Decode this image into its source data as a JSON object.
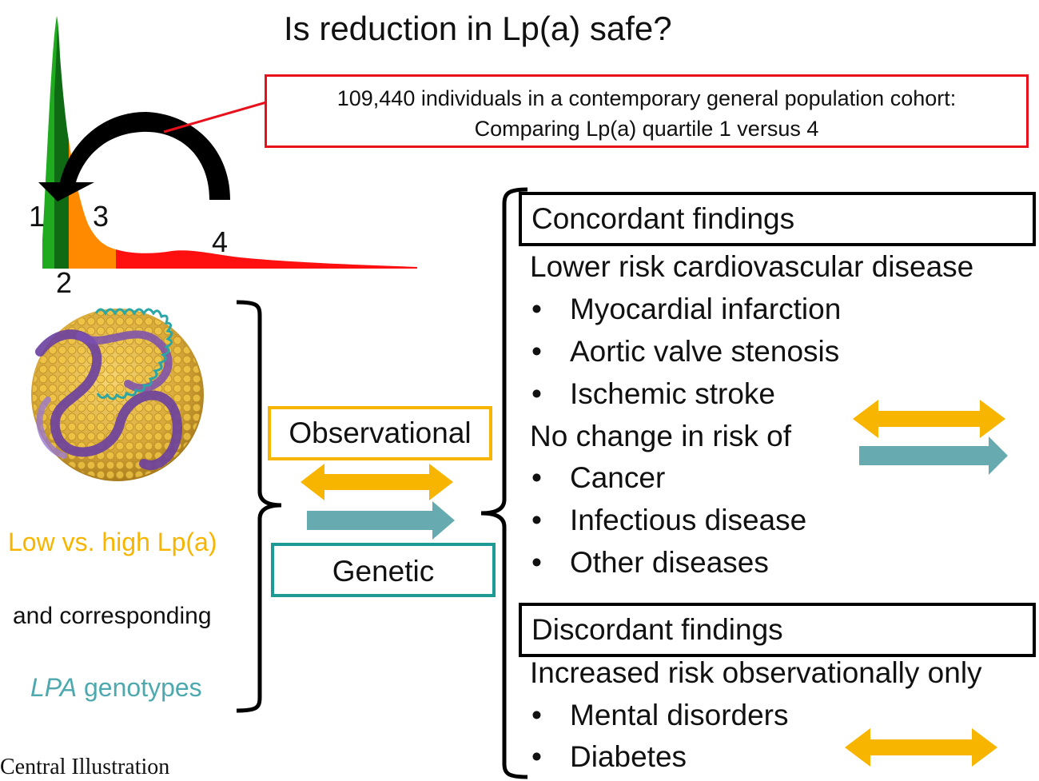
{
  "title": "Is reduction in Lp(a) safe?",
  "cohort": {
    "line1": "109,440 individuals in a contemporary general population cohort:",
    "line2": "Comparing Lp(a) quartile 1 versus 4"
  },
  "distribution": {
    "quartile_labels": [
      "1",
      "2",
      "3",
      "4"
    ],
    "colors": {
      "q1": "#1faa1f",
      "q2": "#0f6a14",
      "q3": "#ff8a00",
      "q4": "#ff1010"
    }
  },
  "study_types": {
    "observational": "Observational",
    "genetic": "Genetic"
  },
  "exposure": {
    "line1": "Low vs. high Lp(a)",
    "line2": "and corresponding",
    "line3_italic": "LPA",
    "line3_rest": " genotypes"
  },
  "concordant": {
    "header": "Concordant findings",
    "lower_risk_heading": "Lower risk cardiovascular disease",
    "lower_risk_items": [
      "Myocardial infarction",
      "Aortic valve stenosis",
      "Ischemic stroke"
    ],
    "no_change_heading": "No change in risk of",
    "no_change_items": [
      "Cancer",
      "Infectious disease",
      "Other diseases"
    ]
  },
  "discordant": {
    "header": "Discordant findings",
    "heading": "Increased risk observationally only",
    "items": [
      "Mental disorders",
      "Diabetes"
    ]
  },
  "bullet_char": "•",
  "footer": "Central Illustration",
  "colors": {
    "observational": "#f7b500",
    "genetic": "#67abb0",
    "red_box": "#e8111b",
    "teal_box": "#1c9a96"
  }
}
